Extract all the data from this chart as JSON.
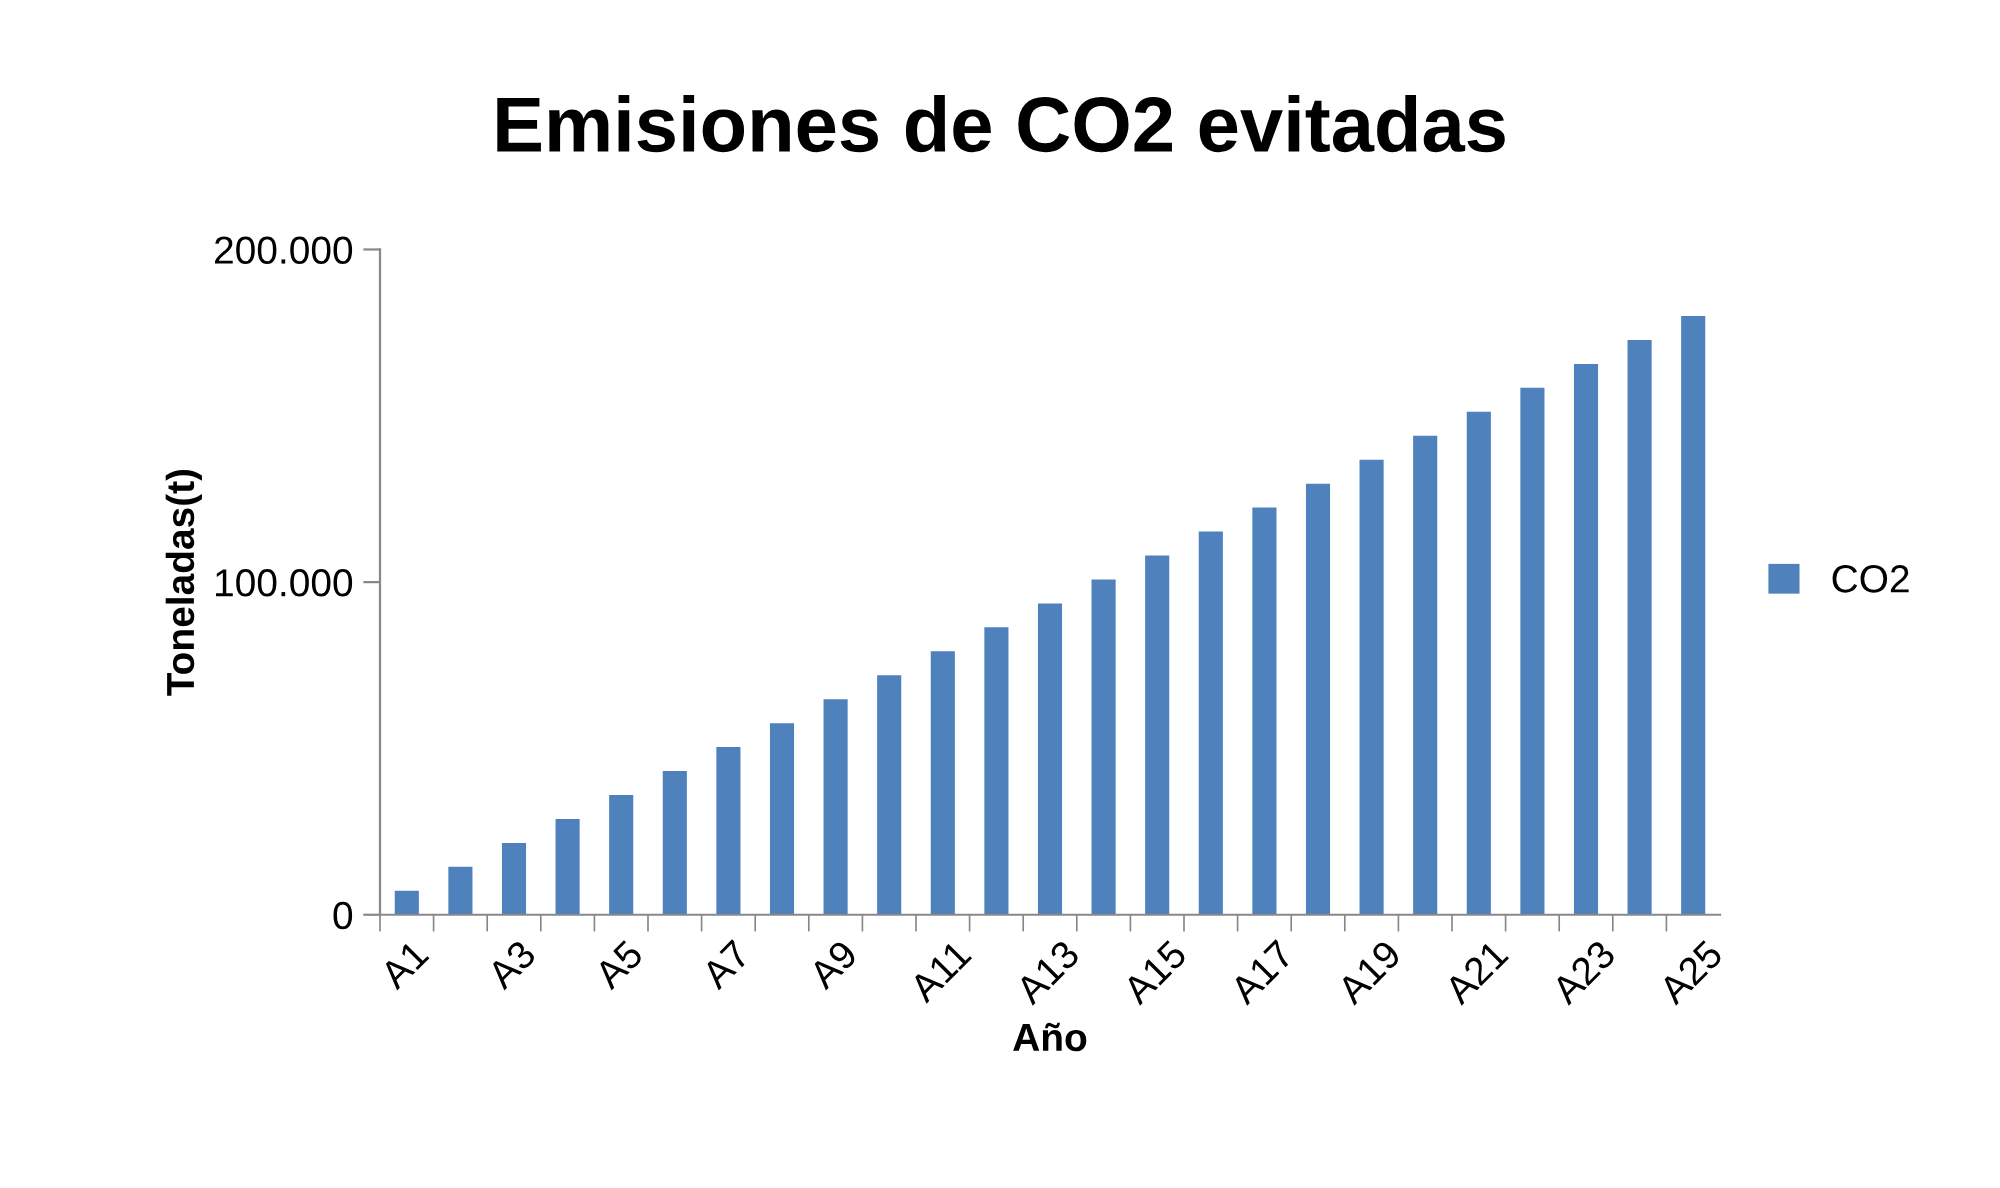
{
  "chart_data": {
    "type": "bar",
    "title": "Emisiones de CO2 evitadas",
    "xlabel": "Año",
    "ylabel": "Toneladas(t)",
    "categories": [
      "A1",
      null,
      "A3",
      null,
      "A5",
      null,
      "A7",
      null,
      "A9",
      null,
      "A11",
      null,
      "A13",
      null,
      "A15",
      null,
      "A17",
      null,
      "A19",
      null,
      "A21",
      null,
      "A23",
      null,
      "A25"
    ],
    "series": [
      {
        "name": "CO2",
        "color": "#4f81bd",
        "values": [
          7200,
          14400,
          21600,
          28800,
          36000,
          43200,
          50400,
          57600,
          64800,
          72000,
          79200,
          86400,
          93600,
          100800,
          108000,
          115200,
          122400,
          129600,
          136800,
          144000,
          151200,
          158400,
          165600,
          172800,
          180000
        ]
      }
    ],
    "ylim": [
      0,
      200000
    ],
    "yticks": [
      0,
      {
        "value": 100000,
        "label": "100.000"
      },
      {
        "value": 200000,
        "label": "200.000"
      }
    ],
    "legend": "right",
    "grid": false
  }
}
